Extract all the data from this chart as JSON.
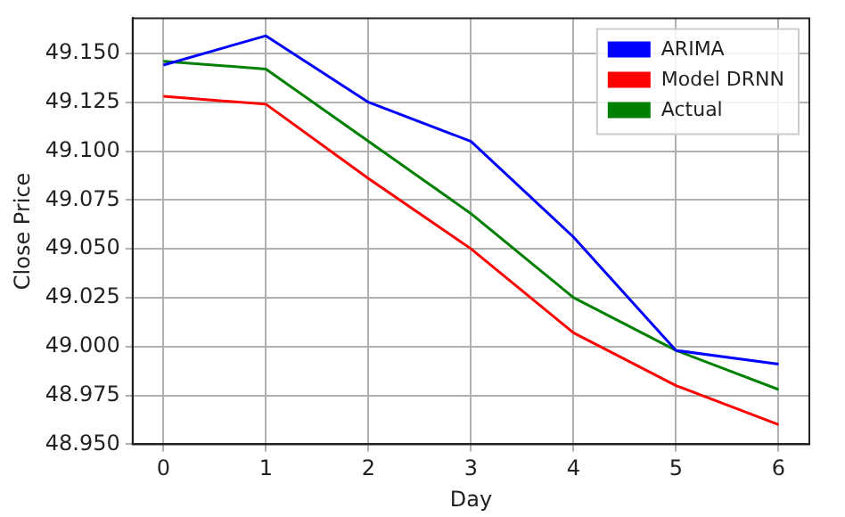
{
  "chart_data": {
    "type": "line",
    "xlabel": "Day",
    "ylabel": "Close Price",
    "x": [
      0,
      1,
      2,
      3,
      4,
      5,
      6
    ],
    "series": [
      {
        "name": "ARIMA",
        "color": "#0000ff",
        "values": [
          49.144,
          49.159,
          49.125,
          49.105,
          49.056,
          48.998,
          48.991
        ]
      },
      {
        "name": "Model DRNN",
        "color": "#ff0000",
        "values": [
          49.128,
          49.124,
          49.086,
          49.05,
          49.007,
          48.98,
          48.96
        ]
      },
      {
        "name": "Actual",
        "color": "#008000",
        "values": [
          49.146,
          49.142,
          49.105,
          49.068,
          49.025,
          48.998,
          48.978
        ]
      }
    ],
    "xlim": [
      -0.3,
      6.3
    ],
    "xticks": [
      0,
      1,
      2,
      3,
      4,
      5,
      6
    ],
    "ylim": [
      48.95,
      49.168
    ],
    "yticks": [
      {
        "value": 48.95,
        "label": "48.950"
      },
      {
        "value": 48.975,
        "label": "48.975"
      },
      {
        "value": 49.0,
        "label": "49.000"
      },
      {
        "value": 49.025,
        "label": "49.025"
      },
      {
        "value": 49.05,
        "label": "49.050"
      },
      {
        "value": 49.075,
        "label": "49.075"
      },
      {
        "value": 49.1,
        "label": "49.100"
      },
      {
        "value": 49.125,
        "label": "49.125"
      },
      {
        "value": 49.15,
        "label": "49.150"
      }
    ],
    "grid": true,
    "legend": "top right",
    "marker": "none",
    "line_style": "solid"
  }
}
